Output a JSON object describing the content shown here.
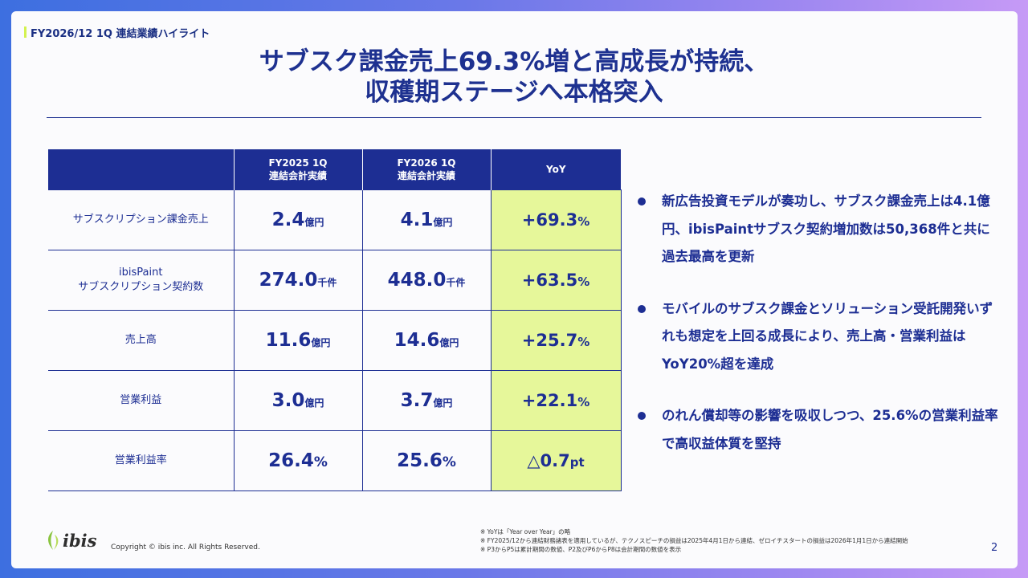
{
  "section_tag": "FY2026/12 1Q 連結業績ハイライト",
  "title": {
    "line1": "サブスク課金売上69.3%増と高成長が持続、",
    "line2": "収穫期ステージへ本格突入"
  },
  "table": {
    "headers": [
      {
        "line1": "",
        "line2": ""
      },
      {
        "line1": "FY2025 1Q",
        "line2": "連結会計実績"
      },
      {
        "line1": "FY2026 1Q",
        "line2": "連結会計実績"
      },
      {
        "line1": "YoY",
        "line2": ""
      }
    ],
    "rows": [
      {
        "label1": "サブスクリプション課金売上",
        "label2": "",
        "fy2025": "2.4",
        "fy2025_unit": "億円",
        "fy2026": "4.1",
        "fy2026_unit": "億円",
        "yoy": "+69.3",
        "yoy_unit": "%",
        "yoy_prefix": ""
      },
      {
        "label1": "ibisPaint",
        "label2": "サブスクリプション契約数",
        "fy2025": "274.0",
        "fy2025_unit": "千件",
        "fy2026": "448.0",
        "fy2026_unit": "千件",
        "yoy": "+63.5",
        "yoy_unit": "%",
        "yoy_prefix": ""
      },
      {
        "label1": "売上高",
        "label2": "",
        "fy2025": "11.6",
        "fy2025_unit": "億円",
        "fy2026": "14.6",
        "fy2026_unit": "億円",
        "yoy": "+25.7",
        "yoy_unit": "%",
        "yoy_prefix": ""
      },
      {
        "label1": "営業利益",
        "label2": "",
        "fy2025": "3.0",
        "fy2025_unit": "億円",
        "fy2026": "3.7",
        "fy2026_unit": "億円",
        "yoy": "+22.1",
        "yoy_unit": "%",
        "yoy_prefix": ""
      },
      {
        "label1": "営業利益率",
        "label2": "",
        "fy2025": "26.4",
        "fy2025_unit": "%",
        "fy2026": "25.6",
        "fy2026_unit": "%",
        "yoy": "0.7",
        "yoy_unit": "pt",
        "yoy_prefix": "△"
      }
    ]
  },
  "bullets": [
    "新広告投資モデルが奏功し、サブスク課金売上は4.1億円、ibisPaintサブスク契約増加数は50,368件と共に過去最高を更新",
    "モバイルのサブスク課金とソリューション受託開発いずれも想定を上回る成長により、売上高・営業利益はYoY20%超を達成",
    "のれん償却等の影響を吸収しつつ、25.6%の営業利益率で高収益体質を堅持"
  ],
  "footer": {
    "logo_text": "ibis",
    "copyright": "Copyright © ibis inc. All Rights Reserved.",
    "notes": [
      "※ YoYは「Year over Year」の略",
      "※ FY2025/12から連結財務諸表を適用しているが、テクノスピーチの損益は2025年4月1日から連結、ゼロイチスタートの損益は2026年1月1日から連結開始",
      "※ P3からP5は累計期間の数値、P2及びP6からP8は会計期間の数値を表示"
    ],
    "page_number": "2"
  },
  "colors": {
    "navy": "#1d2e93",
    "highlight": "#e6f79a",
    "tag_bar": "#d3f250",
    "leaf": "#8ac43f"
  }
}
